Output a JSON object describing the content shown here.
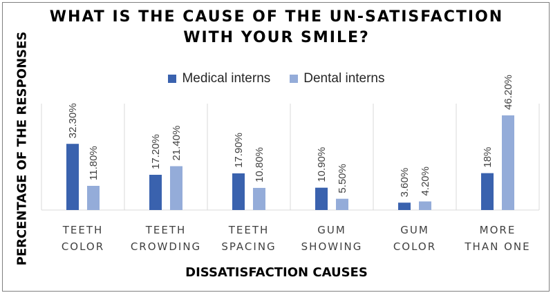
{
  "chart_data": {
    "type": "bar",
    "title": [
      "WHAT IS THE CAUSE OF THE UN-SATISFACTION",
      "WITH YOUR SMILE?"
    ],
    "xlabel": "DISSATISFACTION CAUSES",
    "ylabel": "PERCENTAGE OF THE RESPONSES",
    "categories": [
      [
        "TEETH",
        "COLOR"
      ],
      [
        "TEETH",
        "CROWDING"
      ],
      [
        "TEETH",
        "SPACING"
      ],
      [
        "GUM",
        "SHOWING"
      ],
      [
        "GUM",
        "COLOR"
      ],
      [
        "MORE",
        "THAN ONE"
      ]
    ],
    "series": [
      {
        "name": "Medical interns",
        "color": "#3a62ae",
        "values": [
          32.3,
          17.2,
          17.9,
          10.9,
          3.6,
          18.0
        ],
        "labels": [
          "32.30%",
          "17.20%",
          "17.90%",
          "10.90%",
          "3.60%",
          "18%"
        ]
      },
      {
        "name": "Dental interns",
        "color": "#94acd9",
        "values": [
          11.8,
          21.4,
          10.8,
          5.5,
          4.2,
          46.2
        ],
        "labels": [
          "11.80%",
          "21.40%",
          "10.80%",
          "5.50%",
          "4.20%",
          "46.20%"
        ]
      }
    ],
    "ylim": [
      0,
      46.2
    ],
    "grid": true,
    "gridlines": "vertical",
    "legend_position": "top"
  }
}
